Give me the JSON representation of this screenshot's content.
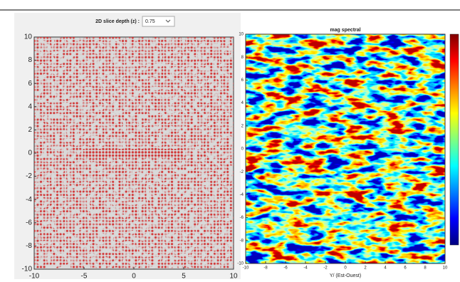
{
  "control": {
    "label": "2D slice depth (z) :",
    "value": "0.75"
  },
  "left_plot": {
    "xlim": [
      -10,
      10
    ],
    "ylim": [
      -10,
      10
    ],
    "xticks": [
      -10,
      -5,
      0,
      5,
      10
    ],
    "yticks": [
      -10,
      -8,
      -6,
      -4,
      -2,
      0,
      2,
      4,
      6,
      8,
      10
    ]
  },
  "right_plot": {
    "title": "mag spectral",
    "xlabel": "Y/ (Est-Ouest)",
    "xlim": [
      -10,
      10
    ],
    "ylim": [
      -10,
      10
    ],
    "xticks": [
      -10,
      -8,
      -6,
      -4,
      -2,
      0,
      2,
      4,
      6,
      8,
      10
    ],
    "yticks": [
      -10,
      -8,
      -6,
      -4,
      -2,
      0,
      2,
      4,
      6,
      8,
      10
    ]
  }
}
